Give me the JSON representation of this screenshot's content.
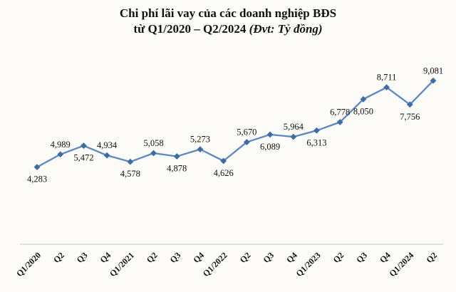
{
  "title": {
    "line1": "Chi phí lãi vay của các doanh nghiệp BĐS",
    "line2_main": "từ Q1/2020 – Q2/2024",
    "line2_unit": "(Đvt: Tỷ đồng)"
  },
  "chart_data": {
    "type": "line",
    "title": "Chi phí lãi vay của các doanh nghiệp BĐS từ Q1/2020 – Q2/2024",
    "unit_note": "Đvt: Tỷ đồng",
    "categories": [
      "Q1/2020",
      "Q2",
      "Q3",
      "Q4",
      "Q1/2021",
      "Q2",
      "Q3",
      "Q4",
      "Q1/2022",
      "Q2",
      "Q3",
      "Q4",
      "Q1/2023",
      "Q2",
      "Q3",
      "Q4",
      "Q1/2024",
      "Q2"
    ],
    "values": [
      4283,
      4989,
      5472,
      4934,
      4578,
      5058,
      4878,
      5273,
      4626,
      5670,
      6089,
      5964,
      6313,
      6778,
      8050,
      8711,
      7756,
      9081
    ],
    "xlabel": "",
    "ylabel": "",
    "ylim": [
      0,
      10000
    ],
    "grid": false,
    "legend": "none",
    "data_labels": true,
    "label_position_pattern": "alternating (even index below point, odd index above point)",
    "x_tick_rotation": -45,
    "line_color": "#5b88c0",
    "marker_color": "#3e6ca8",
    "axis_line_color": "#c9c9c9",
    "label_color": "#111111",
    "marker_shape": "diamond"
  }
}
